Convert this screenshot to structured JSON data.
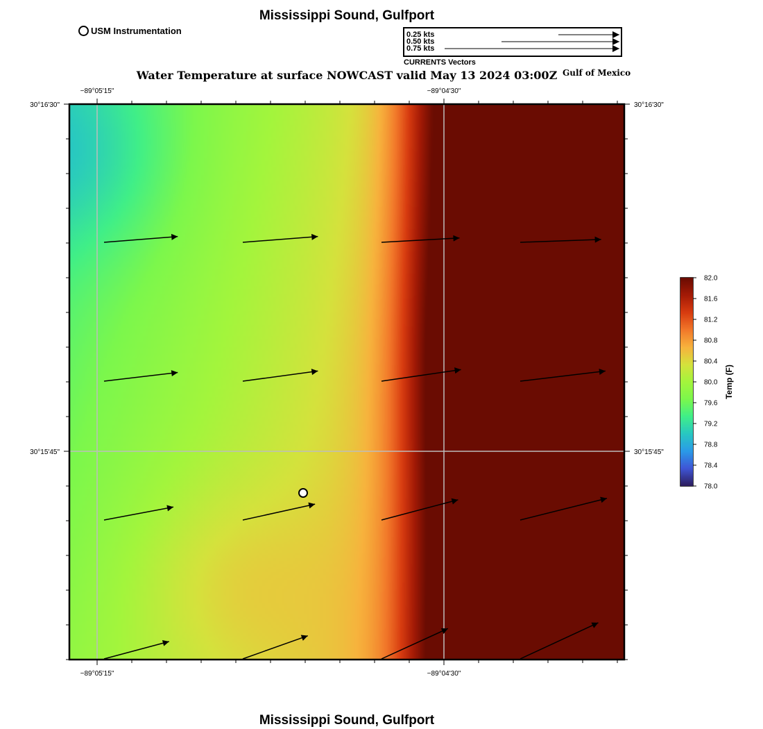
{
  "header": {
    "title": "Mississippi Sound, Gulfport",
    "subtitle": "Water Temperature at surface NOWCAST valid May 13 2024 03:00Z",
    "region": "Gulf of Mexico"
  },
  "footer": {
    "title": "Mississippi Sound, Gulfport"
  },
  "legend": {
    "usm_label": "USM Instrumentation"
  },
  "currents_legend": {
    "caption": "CURRENTS Vectors",
    "entries": [
      {
        "label": "0.25 kts",
        "speed": 0.25
      },
      {
        "label": "0.50 kts",
        "speed": 0.5
      },
      {
        "label": "0.75 kts",
        "speed": 0.75
      }
    ]
  },
  "map": {
    "lon_labels": [
      "−89°05'15\"",
      "−89°04'30\""
    ],
    "lat_labels": [
      "30°16'30\"",
      "30°15'45\""
    ],
    "station_marker": {
      "name": "USM Instrumentation"
    }
  },
  "colorbar": {
    "label": "Temp (F)",
    "min": 78.0,
    "max": 82.0,
    "ticks": [
      "82.0",
      "81.6",
      "81.2",
      "80.8",
      "80.4",
      "80.0",
      "79.6",
      "79.2",
      "78.8",
      "78.4",
      "78.0"
    ],
    "colors": [
      "#2d1e5f",
      "#3f56d6",
      "#2a9be8",
      "#28c8c2",
      "#40ef88",
      "#7cf74c",
      "#a4f53c",
      "#d5e23c",
      "#f7b33d",
      "#f2782a",
      "#d83c10",
      "#a51b06",
      "#6a0c02"
    ]
  },
  "currents": {
    "vectors": [
      {
        "lon": 0.05,
        "lat": 0.75,
        "u": 0.51,
        "v": 0.04
      },
      {
        "lon": 0.3,
        "lat": 0.75,
        "u": 0.52,
        "v": 0.04
      },
      {
        "lon": 0.55,
        "lat": 0.75,
        "u": 0.54,
        "v": 0.03
      },
      {
        "lon": 0.8,
        "lat": 0.75,
        "u": 0.56,
        "v": 0.02
      },
      {
        "lon": 0.05,
        "lat": 0.5,
        "u": 0.51,
        "v": 0.06
      },
      {
        "lon": 0.3,
        "lat": 0.5,
        "u": 0.52,
        "v": 0.07
      },
      {
        "lon": 0.55,
        "lat": 0.5,
        "u": 0.55,
        "v": 0.08
      },
      {
        "lon": 0.8,
        "lat": 0.5,
        "u": 0.59,
        "v": 0.07
      },
      {
        "lon": 0.05,
        "lat": 0.25,
        "u": 0.48,
        "v": 0.09
      },
      {
        "lon": 0.3,
        "lat": 0.25,
        "u": 0.5,
        "v": 0.11
      },
      {
        "lon": 0.55,
        "lat": 0.25,
        "u": 0.53,
        "v": 0.14
      },
      {
        "lon": 0.8,
        "lat": 0.25,
        "u": 0.6,
        "v": 0.15
      },
      {
        "lon": 0.05,
        "lat": 0.0,
        "u": 0.45,
        "v": 0.12
      },
      {
        "lon": 0.3,
        "lat": 0.0,
        "u": 0.45,
        "v": 0.16
      },
      {
        "lon": 0.55,
        "lat": 0.0,
        "u": 0.46,
        "v": 0.21
      },
      {
        "lon": 0.8,
        "lat": 0.0,
        "u": 0.54,
        "v": 0.25
      }
    ]
  }
}
